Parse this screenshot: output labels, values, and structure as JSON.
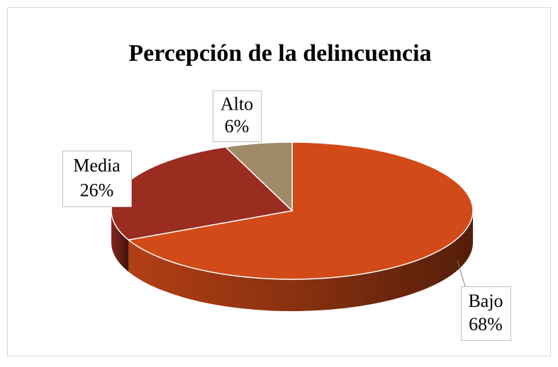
{
  "chart_data": {
    "type": "pie",
    "title": "Percepción de la delincuencia",
    "categories": [
      "Bajo",
      "Media",
      "Alto"
    ],
    "values": [
      68,
      26,
      6
    ],
    "value_labels": [
      "68%",
      "26%",
      "6%"
    ],
    "colors": [
      "#d14a18",
      "#9a2c20",
      "#a08a68"
    ]
  }
}
